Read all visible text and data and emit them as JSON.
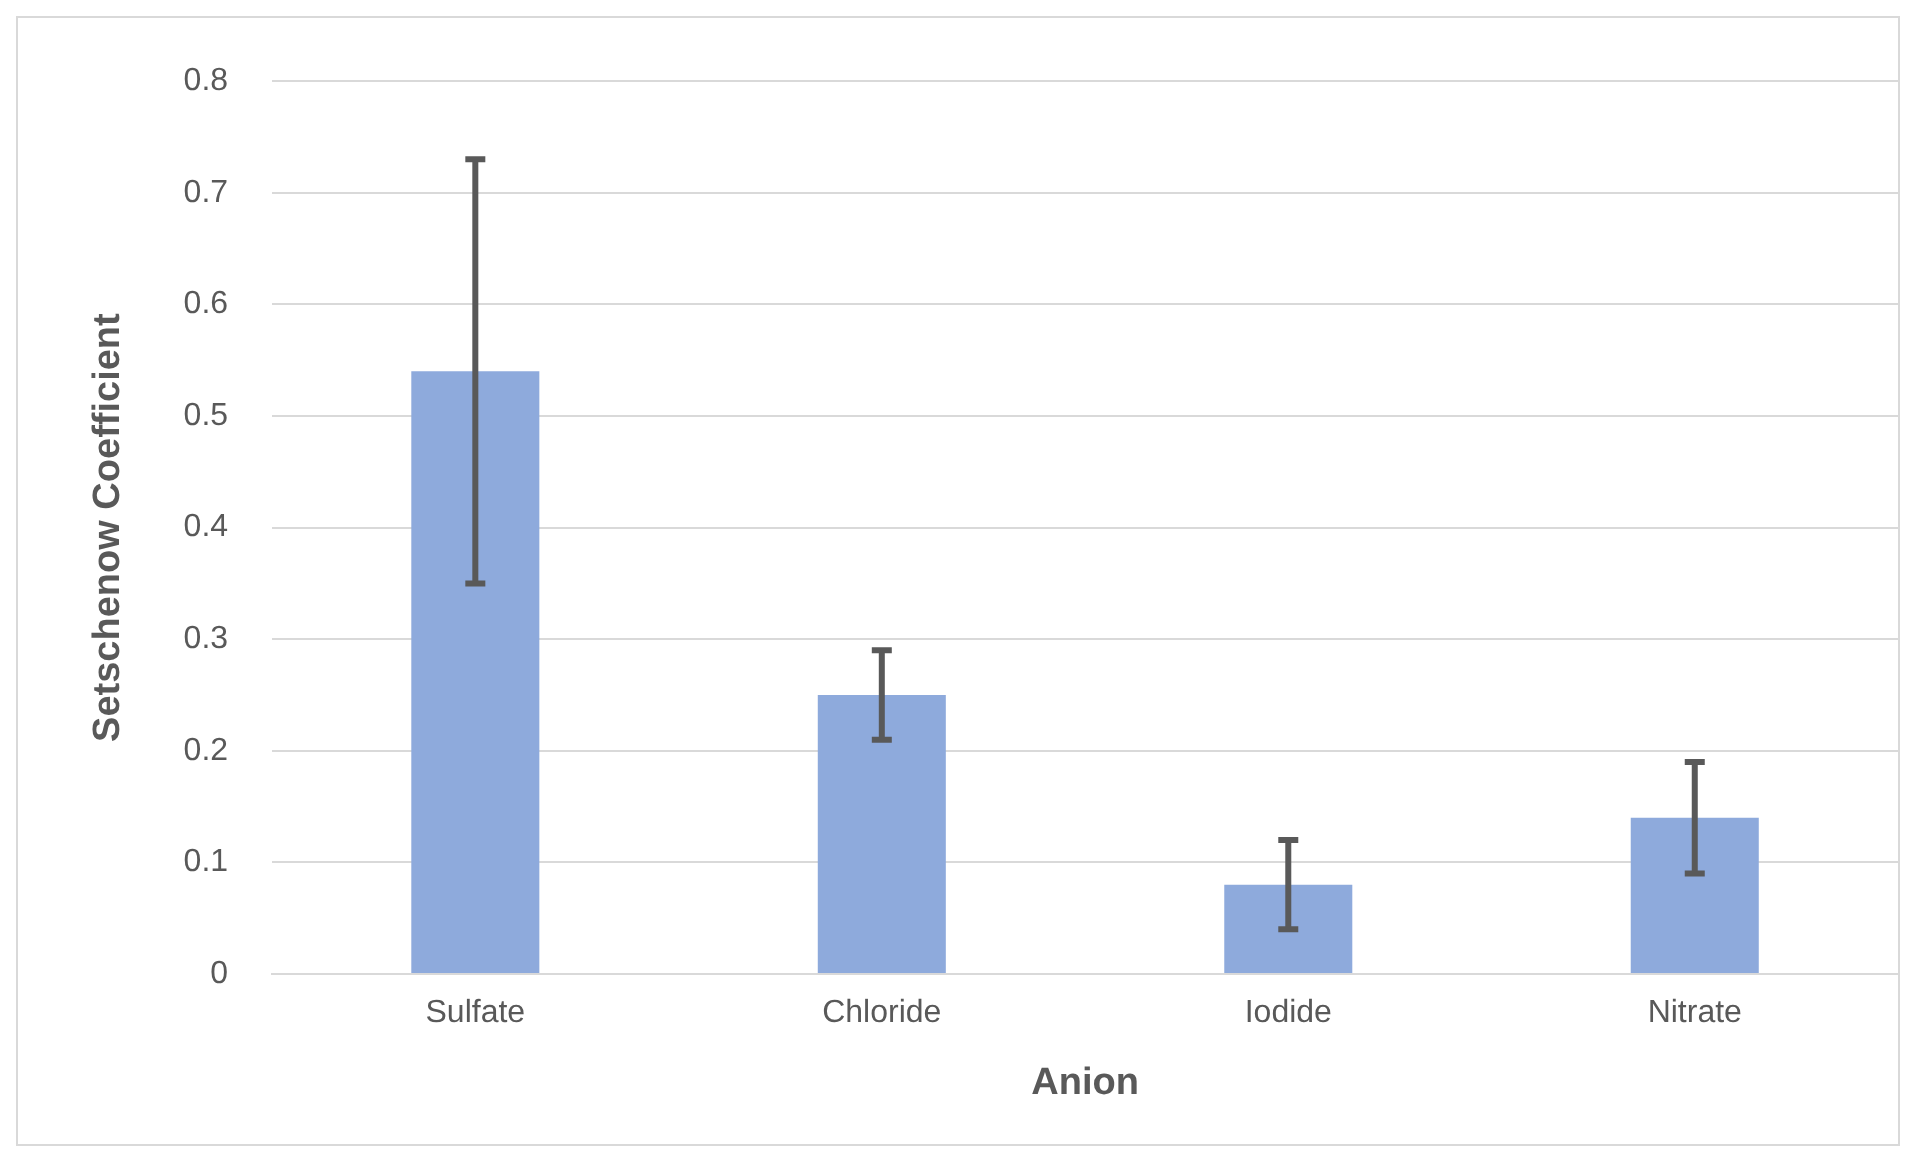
{
  "chart_data": {
    "type": "bar",
    "xlabel": "Anion",
    "ylabel": "Setschenow Coefficient",
    "categories": [
      "Sulfate",
      "Chloride",
      "Iodide",
      "Nitrate"
    ],
    "values": [
      0.54,
      0.25,
      0.08,
      0.14
    ],
    "errors": [
      0.19,
      0.04,
      0.04,
      0.05
    ],
    "color": "#8eaadc",
    "ylim": [
      0,
      0.8
    ],
    "yticks": [
      0,
      0.1,
      0.2,
      0.3,
      0.4,
      0.5,
      0.6,
      0.7,
      0.8
    ],
    "grid": "y",
    "legend": false
  }
}
